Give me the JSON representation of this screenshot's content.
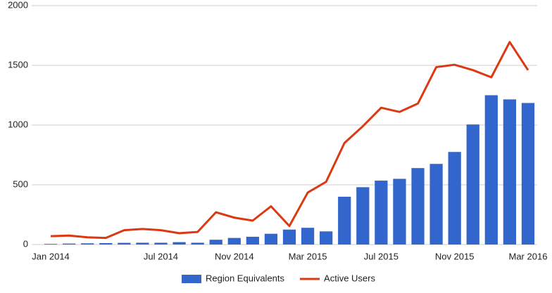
{
  "chart_data": {
    "type": "combo",
    "categories": [
      "Jan 2014",
      null,
      null,
      null,
      null,
      null,
      "Jul 2014",
      null,
      null,
      null,
      "Nov 2014",
      null,
      null,
      null,
      "Mar 2015",
      null,
      null,
      null,
      "Jul 2015",
      null,
      null,
      null,
      "Nov 2015",
      null,
      null,
      null,
      "Mar 2016"
    ],
    "series": [
      {
        "name": "Region Equivalents",
        "type": "bar",
        "color": "#3366cc",
        "values": [
          5,
          8,
          10,
          12,
          14,
          15,
          15,
          20,
          15,
          40,
          55,
          65,
          90,
          125,
          140,
          110,
          400,
          480,
          535,
          550,
          640,
          675,
          775,
          1005,
          1250,
          1215,
          1185
        ]
      },
      {
        "name": "Active Users",
        "type": "line",
        "color": "#dc3912",
        "values": [
          70,
          75,
          60,
          55,
          120,
          130,
          120,
          95,
          105,
          270,
          225,
          200,
          320,
          155,
          435,
          525,
          850,
          990,
          1145,
          1110,
          1180,
          1485,
          1505,
          1460,
          1400,
          1695,
          1460
        ]
      }
    ],
    "ylim": [
      0,
      2000
    ],
    "yticks": [
      0,
      500,
      1000,
      1500,
      2000
    ],
    "grid": true,
    "legend": "bottom"
  }
}
